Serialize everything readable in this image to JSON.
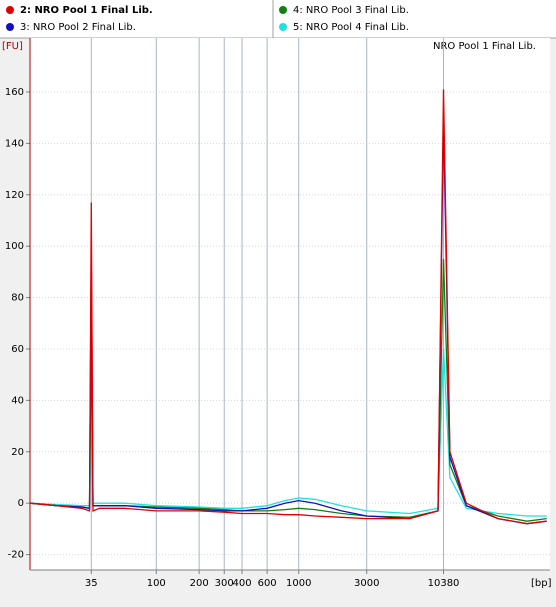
{
  "chart_data": {
    "type": "line",
    "title": "NRO Pool 1 Final Lib.",
    "ylabel": "[FU]",
    "xlabel": "[bp]",
    "xscale": "log",
    "grid": true,
    "xlim": [
      13,
      58000
    ],
    "xticks": [
      35,
      100,
      200,
      300,
      400,
      600,
      1000,
      3000,
      10380
    ],
    "ylim": [
      -26,
      181
    ],
    "yticks": [
      -20,
      0,
      20,
      40,
      60,
      80,
      100,
      120,
      140,
      160
    ],
    "x": [
      13,
      20,
      30,
      34,
      35,
      36,
      40,
      60,
      100,
      200,
      300,
      400,
      600,
      800,
      1000,
      1300,
      2000,
      3000,
      6000,
      9500,
      10380,
      11500,
      15000,
      25000,
      40000,
      55000
    ],
    "series": [
      {
        "name": "2: NRO Pool 1 Final Lib.",
        "color": "#e00000",
        "values": [
          0,
          -1,
          -2,
          -3,
          117,
          -3,
          -2,
          -2,
          -3,
          -3,
          -3.5,
          -4,
          -4,
          -4.5,
          -4.5,
          -5,
          -5.5,
          -6,
          -6,
          -3,
          161,
          20,
          0,
          -6,
          -8,
          -7
        ]
      },
      {
        "name": "3: NRO Pool 2 Final Lib.",
        "color": "#1010c0",
        "values": [
          0,
          -1,
          -1.5,
          -2,
          99,
          -1,
          -1,
          -1,
          -2,
          -2.5,
          -3,
          -3,
          -2,
          0,
          1,
          0,
          -3,
          -5,
          -6,
          -3,
          150,
          18,
          -1,
          -6,
          -8,
          -7
        ]
      },
      {
        "name": "4: NRO Pool 3 Final Lib.",
        "color": "#108010",
        "values": [
          0,
          -1,
          -1.5,
          -2,
          63,
          -1,
          -1,
          -1,
          -1.5,
          -2,
          -2.5,
          -3,
          -3,
          -2.5,
          -2,
          -2.5,
          -4,
          -5,
          -5.5,
          -3,
          95,
          15,
          -1,
          -5,
          -7,
          -6
        ]
      },
      {
        "name": "5: NRO Pool 4 Final Lib.",
        "color": "#20e0e0",
        "values": [
          0,
          -0.5,
          -1,
          -1,
          25,
          0,
          0,
          0,
          -1,
          -1.5,
          -2,
          -2,
          -1,
          1,
          2,
          1.5,
          -1,
          -3,
          -4,
          -2,
          60,
          10,
          -2,
          -4,
          -5,
          -5
        ]
      }
    ]
  }
}
